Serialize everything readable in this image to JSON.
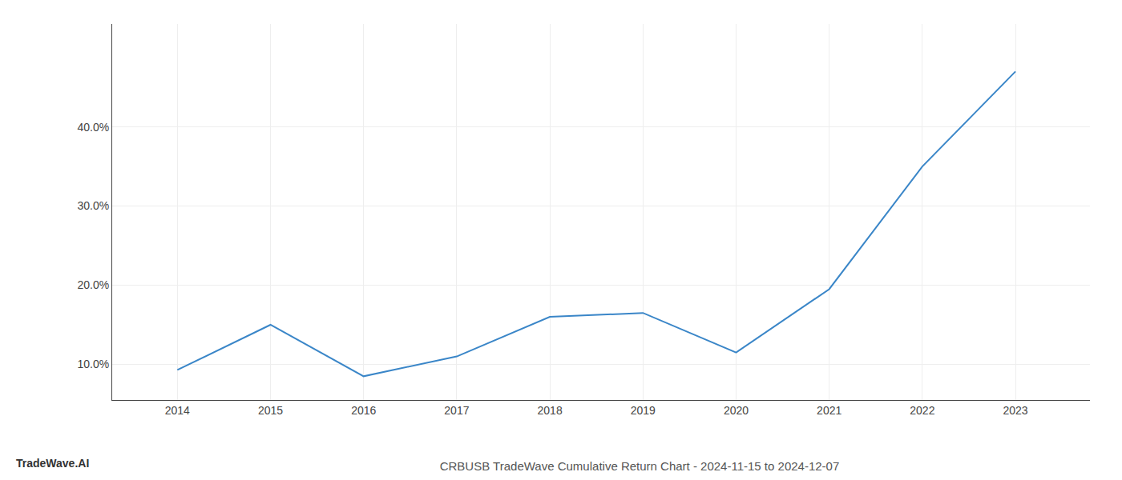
{
  "chart_data": {
    "type": "line",
    "title": "CRBUSB TradeWave Cumulative Return Chart - 2024-11-15 to 2024-12-07",
    "annotations": [
      "TradeWave.AI"
    ],
    "x": [
      2014,
      2015,
      2016,
      2017,
      2018,
      2019,
      2020,
      2021,
      2022,
      2023
    ],
    "values": [
      9.3,
      15.0,
      8.5,
      11.0,
      16.0,
      16.5,
      11.5,
      19.5,
      35.0,
      47.0
    ],
    "color": "#3a86c8",
    "xlim": [
      2013.3,
      2023.8
    ],
    "ylim": [
      5.5,
      53.0
    ],
    "xticks": [
      2014,
      2015,
      2016,
      2017,
      2018,
      2019,
      2020,
      2021,
      2022,
      2023
    ],
    "yticks": [
      {
        "value": 10.0,
        "label": "10.0%"
      },
      {
        "value": 20.0,
        "label": "20.0%"
      },
      {
        "value": 30.0,
        "label": "30.0%"
      },
      {
        "value": 40.0,
        "label": "40.0%"
      }
    ],
    "grid": true
  }
}
